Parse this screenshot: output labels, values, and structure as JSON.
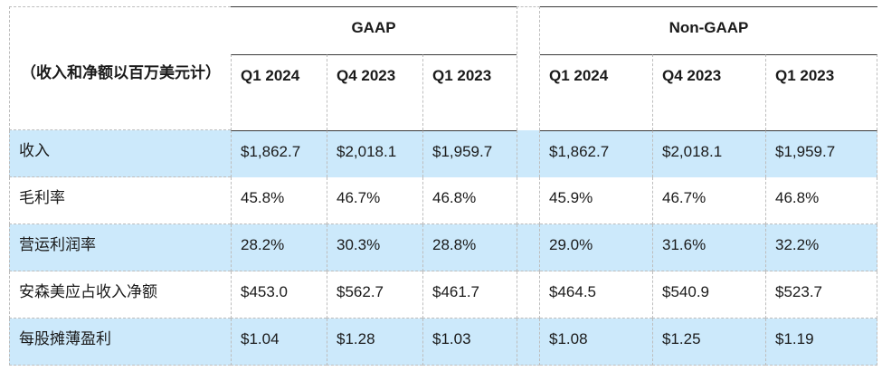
{
  "header": {
    "units_label": "（收入和净额以百万美元计）",
    "gaap_label": "GAAP",
    "nongaap_label": "Non-GAAP",
    "columns": [
      "Q1 2024",
      "Q4 2023",
      "Q1 2023",
      "Q1 2024",
      "Q4 2023",
      "Q1 2023"
    ]
  },
  "rows": [
    {
      "label": "收入",
      "values": [
        "$1,862.7",
        "$2,018.1",
        "$1,959.7",
        "$1,862.7",
        "$2,018.1",
        "$1,959.7"
      ]
    },
    {
      "label": "毛利率",
      "values": [
        "45.8%",
        "46.7%",
        "46.8%",
        "45.9%",
        "46.7%",
        "46.8%"
      ]
    },
    {
      "label": "营运利润率",
      "values": [
        "28.2%",
        "30.3%",
        "28.8%",
        "29.0%",
        "31.6%",
        "32.2%"
      ]
    },
    {
      "label": "安森美应占收入净额",
      "values": [
        "$453.0",
        "$562.7",
        "$461.7",
        "$464.5",
        "$540.9",
        "$523.7"
      ]
    },
    {
      "label": "每股摊薄盈利",
      "values": [
        "$1.04",
        "$1.28",
        "$1.03",
        "$1.08",
        "$1.25",
        "$1.19"
      ]
    }
  ],
  "colors": {
    "row_highlight": "#cce9fb",
    "rule": "#3a3a3a"
  }
}
